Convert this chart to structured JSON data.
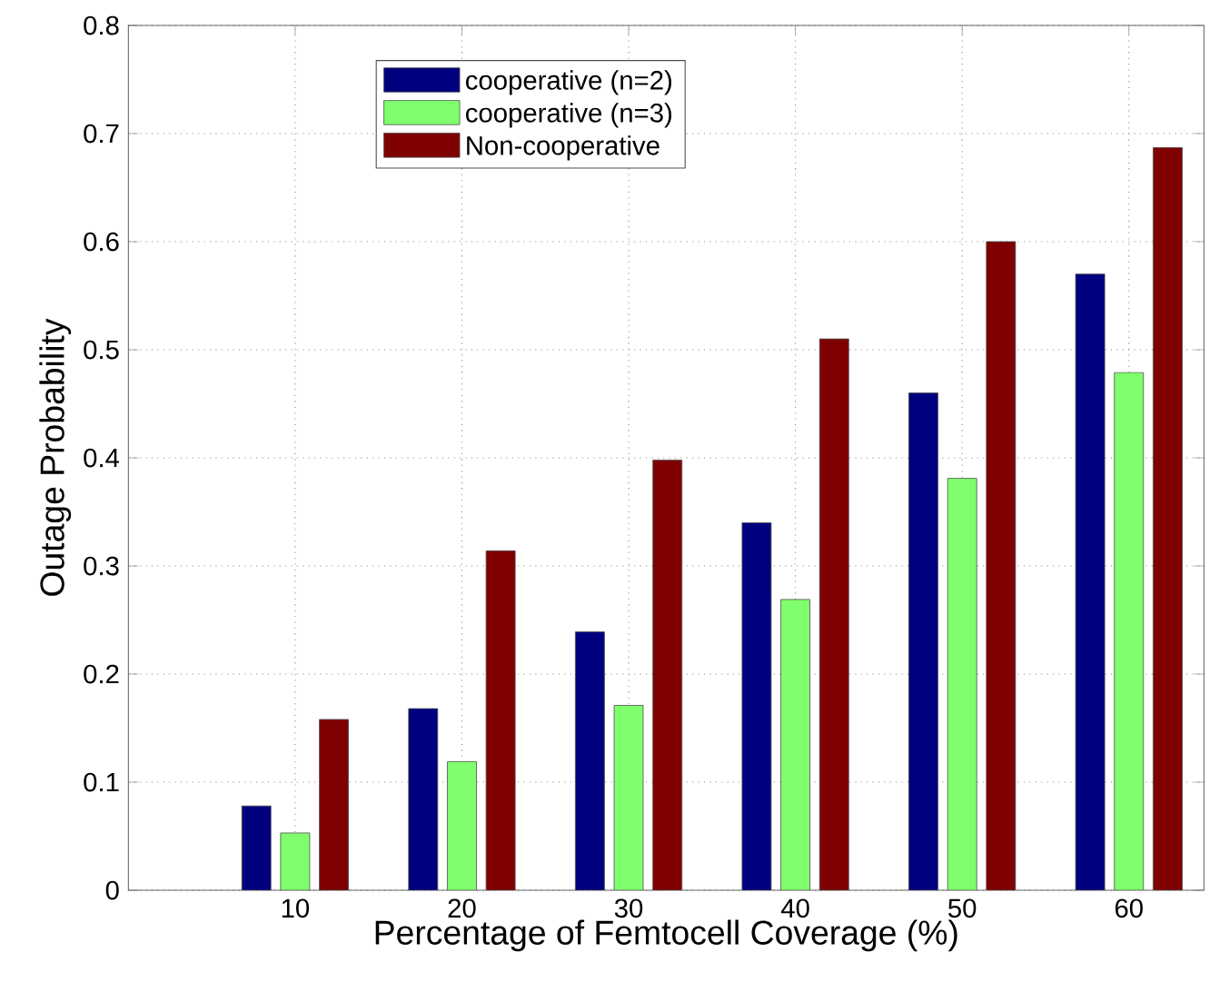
{
  "chart_data": {
    "type": "bar",
    "xlabel": "Percentage of Femtocell Coverage (%)",
    "ylabel": "Outage Probability",
    "x": [
      10,
      20,
      30,
      40,
      50,
      60
    ],
    "series": [
      {
        "name": "cooperative (n=2)",
        "color": "#00007f",
        "values": [
          0.078,
          0.168,
          0.239,
          0.34,
          0.46,
          0.57
        ]
      },
      {
        "name": "cooperative (n=3)",
        "color": "#80ff6e",
        "values": [
          0.053,
          0.119,
          0.171,
          0.269,
          0.381,
          0.479
        ]
      },
      {
        "name": "Non-cooperative",
        "color": "#7f0000",
        "values": [
          0.158,
          0.314,
          0.398,
          0.51,
          0.6,
          0.687
        ]
      }
    ],
    "xlim": [
      0,
      64.5
    ],
    "xticks": [
      10,
      20,
      30,
      40,
      50,
      60
    ],
    "ylim": [
      0,
      0.8
    ],
    "yticks": [
      0,
      0.1,
      0.2,
      0.3,
      0.4,
      0.5,
      0.6,
      0.7,
      0.8
    ],
    "grid": true,
    "legend": "top left"
  }
}
